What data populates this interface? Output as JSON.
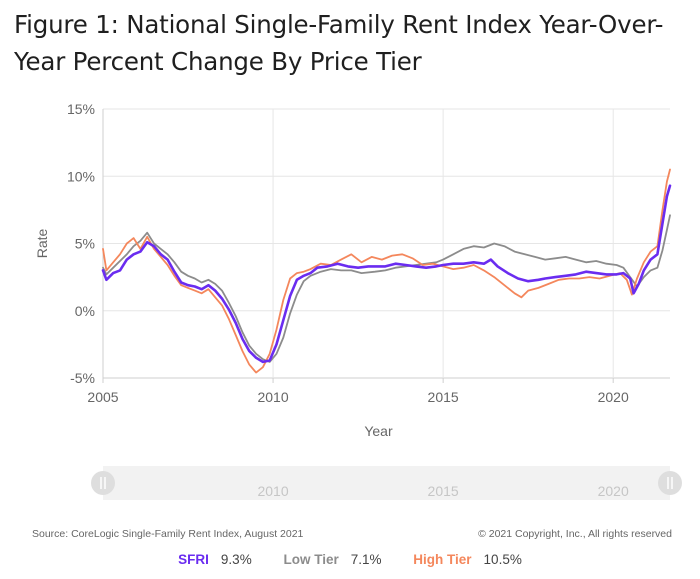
{
  "title": "Figure 1: National Single-Family Rent Index Year-Over-Year Percent Change By Price Tier",
  "source": "Source: CoreLogic Single-Family Rent Index, August 2021",
  "copyright": "© 2021 Copyright, Inc., All rights reserved",
  "colors": {
    "sfri": "#6a2cf0",
    "low": "#8c8c8c",
    "high": "#f4875c",
    "grid": "#e6e6e6",
    "axis": "#cfcfcf",
    "text": "#666666"
  },
  "legend": [
    {
      "name": "SFRI",
      "value": "9.3%",
      "color": "#6a2cf0"
    },
    {
      "name": "Low Tier",
      "value": "7.1%",
      "color": "#8c8c8c"
    },
    {
      "name": "High Tier",
      "value": "10.5%",
      "color": "#f4875c"
    }
  ],
  "navigator": {
    "tick_labels": [
      "2010",
      "2015",
      "2020"
    ]
  },
  "chart_data": {
    "type": "line",
    "title": "Figure 1: National Single-Family Rent Index Year-Over-Year Percent Change By Price Tier",
    "xlabel": "Year",
    "ylabel": "Rate",
    "xlim": [
      2005.0,
      2021.67
    ],
    "ylim": [
      -5,
      15
    ],
    "x_ticks": [
      2005,
      2010,
      2015,
      2020
    ],
    "y_ticks": [
      -5,
      0,
      5,
      10,
      15
    ],
    "y_tick_labels": [
      "-5%",
      "0%",
      "5%",
      "10%",
      "15%"
    ],
    "grid": "horizontal",
    "legend_position": "bottom",
    "series": [
      {
        "name": "SFRI",
        "points": [
          [
            2005.0,
            3.0
          ],
          [
            2005.1,
            2.3
          ],
          [
            2005.3,
            2.8
          ],
          [
            2005.5,
            3.0
          ],
          [
            2005.7,
            3.8
          ],
          [
            2005.9,
            4.2
          ],
          [
            2006.1,
            4.4
          ],
          [
            2006.3,
            5.1
          ],
          [
            2006.5,
            4.8
          ],
          [
            2006.7,
            4.2
          ],
          [
            2006.9,
            3.8
          ],
          [
            2007.1,
            2.9
          ],
          [
            2007.3,
            2.1
          ],
          [
            2007.5,
            1.9
          ],
          [
            2007.7,
            1.8
          ],
          [
            2007.9,
            1.6
          ],
          [
            2008.1,
            1.9
          ],
          [
            2008.3,
            1.5
          ],
          [
            2008.5,
            0.9
          ],
          [
            2008.7,
            0.1
          ],
          [
            2008.9,
            -0.9
          ],
          [
            2009.1,
            -2.1
          ],
          [
            2009.3,
            -3.0
          ],
          [
            2009.5,
            -3.5
          ],
          [
            2009.7,
            -3.8
          ],
          [
            2009.9,
            -3.7
          ],
          [
            2010.1,
            -2.5
          ],
          [
            2010.3,
            -0.7
          ],
          [
            2010.5,
            1.1
          ],
          [
            2010.7,
            2.3
          ],
          [
            2010.9,
            2.6
          ],
          [
            2011.1,
            2.8
          ],
          [
            2011.3,
            3.2
          ],
          [
            2011.6,
            3.3
          ],
          [
            2011.9,
            3.5
          ],
          [
            2012.2,
            3.3
          ],
          [
            2012.5,
            3.2
          ],
          [
            2012.8,
            3.3
          ],
          [
            2013.0,
            3.3
          ],
          [
            2013.3,
            3.3
          ],
          [
            2013.6,
            3.5
          ],
          [
            2013.9,
            3.4
          ],
          [
            2014.2,
            3.3
          ],
          [
            2014.5,
            3.2
          ],
          [
            2014.8,
            3.3
          ],
          [
            2015.0,
            3.4
          ],
          [
            2015.3,
            3.5
          ],
          [
            2015.6,
            3.5
          ],
          [
            2015.9,
            3.6
          ],
          [
            2016.2,
            3.5
          ],
          [
            2016.4,
            3.8
          ],
          [
            2016.6,
            3.3
          ],
          [
            2016.9,
            2.8
          ],
          [
            2017.2,
            2.4
          ],
          [
            2017.5,
            2.2
          ],
          [
            2017.8,
            2.3
          ],
          [
            2018.0,
            2.4
          ],
          [
            2018.3,
            2.5
          ],
          [
            2018.6,
            2.6
          ],
          [
            2018.9,
            2.7
          ],
          [
            2019.2,
            2.9
          ],
          [
            2019.5,
            2.8
          ],
          [
            2019.8,
            2.7
          ],
          [
            2020.1,
            2.7
          ],
          [
            2020.3,
            2.8
          ],
          [
            2020.5,
            2.4
          ],
          [
            2020.6,
            1.3
          ],
          [
            2020.75,
            2.0
          ],
          [
            2020.9,
            3.0
          ],
          [
            2021.1,
            3.8
          ],
          [
            2021.3,
            4.2
          ],
          [
            2021.45,
            6.5
          ],
          [
            2021.58,
            8.5
          ],
          [
            2021.67,
            9.3
          ]
        ]
      },
      {
        "name": "Low Tier",
        "points": [
          [
            2005.0,
            3.2
          ],
          [
            2005.1,
            2.7
          ],
          [
            2005.3,
            3.2
          ],
          [
            2005.5,
            3.7
          ],
          [
            2005.7,
            4.2
          ],
          [
            2005.9,
            4.8
          ],
          [
            2006.1,
            5.2
          ],
          [
            2006.3,
            5.8
          ],
          [
            2006.5,
            5.0
          ],
          [
            2006.7,
            4.6
          ],
          [
            2006.9,
            4.2
          ],
          [
            2007.1,
            3.6
          ],
          [
            2007.3,
            2.9
          ],
          [
            2007.5,
            2.6
          ],
          [
            2007.7,
            2.4
          ],
          [
            2007.9,
            2.1
          ],
          [
            2008.1,
            2.3
          ],
          [
            2008.3,
            2.0
          ],
          [
            2008.5,
            1.5
          ],
          [
            2008.7,
            0.6
          ],
          [
            2008.9,
            -0.4
          ],
          [
            2009.1,
            -1.6
          ],
          [
            2009.3,
            -2.6
          ],
          [
            2009.5,
            -3.2
          ],
          [
            2009.7,
            -3.6
          ],
          [
            2009.9,
            -3.8
          ],
          [
            2010.1,
            -3.2
          ],
          [
            2010.3,
            -2.0
          ],
          [
            2010.5,
            -0.2
          ],
          [
            2010.7,
            1.2
          ],
          [
            2010.9,
            2.2
          ],
          [
            2011.1,
            2.6
          ],
          [
            2011.4,
            2.9
          ],
          [
            2011.7,
            3.1
          ],
          [
            2012.0,
            3.0
          ],
          [
            2012.3,
            3.0
          ],
          [
            2012.6,
            2.8
          ],
          [
            2013.0,
            2.9
          ],
          [
            2013.3,
            3.0
          ],
          [
            2013.6,
            3.2
          ],
          [
            2013.9,
            3.3
          ],
          [
            2014.2,
            3.4
          ],
          [
            2014.5,
            3.5
          ],
          [
            2014.8,
            3.6
          ],
          [
            2015.0,
            3.8
          ],
          [
            2015.3,
            4.2
          ],
          [
            2015.6,
            4.6
          ],
          [
            2015.9,
            4.8
          ],
          [
            2016.2,
            4.7
          ],
          [
            2016.5,
            5.0
          ],
          [
            2016.8,
            4.8
          ],
          [
            2017.1,
            4.4
          ],
          [
            2017.4,
            4.2
          ],
          [
            2017.7,
            4.0
          ],
          [
            2018.0,
            3.8
          ],
          [
            2018.3,
            3.9
          ],
          [
            2018.6,
            4.0
          ],
          [
            2018.9,
            3.8
          ],
          [
            2019.2,
            3.6
          ],
          [
            2019.5,
            3.7
          ],
          [
            2019.8,
            3.5
          ],
          [
            2020.1,
            3.4
          ],
          [
            2020.3,
            3.2
          ],
          [
            2020.5,
            2.5
          ],
          [
            2020.7,
            1.8
          ],
          [
            2020.9,
            2.5
          ],
          [
            2021.1,
            3.0
          ],
          [
            2021.3,
            3.2
          ],
          [
            2021.45,
            4.5
          ],
          [
            2021.58,
            6.0
          ],
          [
            2021.67,
            7.1
          ]
        ]
      },
      {
        "name": "High Tier",
        "points": [
          [
            2005.0,
            4.6
          ],
          [
            2005.1,
            3.0
          ],
          [
            2005.3,
            3.6
          ],
          [
            2005.5,
            4.2
          ],
          [
            2005.7,
            5.0
          ],
          [
            2005.9,
            5.4
          ],
          [
            2006.1,
            4.6
          ],
          [
            2006.3,
            5.5
          ],
          [
            2006.5,
            4.6
          ],
          [
            2006.7,
            4.0
          ],
          [
            2006.9,
            3.4
          ],
          [
            2007.1,
            2.6
          ],
          [
            2007.3,
            1.9
          ],
          [
            2007.5,
            1.7
          ],
          [
            2007.7,
            1.5
          ],
          [
            2007.9,
            1.3
          ],
          [
            2008.1,
            1.6
          ],
          [
            2008.3,
            1.0
          ],
          [
            2008.5,
            0.4
          ],
          [
            2008.7,
            -0.6
          ],
          [
            2008.9,
            -1.8
          ],
          [
            2009.1,
            -3.0
          ],
          [
            2009.3,
            -4.0
          ],
          [
            2009.5,
            -4.6
          ],
          [
            2009.7,
            -4.2
          ],
          [
            2009.9,
            -3.2
          ],
          [
            2010.1,
            -1.4
          ],
          [
            2010.3,
            0.8
          ],
          [
            2010.5,
            2.4
          ],
          [
            2010.7,
            2.8
          ],
          [
            2010.9,
            2.9
          ],
          [
            2011.1,
            3.1
          ],
          [
            2011.4,
            3.5
          ],
          [
            2011.7,
            3.4
          ],
          [
            2012.0,
            3.8
          ],
          [
            2012.3,
            4.2
          ],
          [
            2012.6,
            3.6
          ],
          [
            2012.9,
            4.0
          ],
          [
            2013.2,
            3.8
          ],
          [
            2013.5,
            4.1
          ],
          [
            2013.8,
            4.2
          ],
          [
            2014.1,
            3.9
          ],
          [
            2014.4,
            3.4
          ],
          [
            2014.7,
            3.5
          ],
          [
            2015.0,
            3.3
          ],
          [
            2015.3,
            3.1
          ],
          [
            2015.6,
            3.2
          ],
          [
            2015.9,
            3.4
          ],
          [
            2016.2,
            3.0
          ],
          [
            2016.5,
            2.5
          ],
          [
            2016.8,
            1.9
          ],
          [
            2017.1,
            1.3
          ],
          [
            2017.3,
            1.0
          ],
          [
            2017.5,
            1.5
          ],
          [
            2017.8,
            1.7
          ],
          [
            2018.1,
            2.0
          ],
          [
            2018.4,
            2.3
          ],
          [
            2018.7,
            2.4
          ],
          [
            2019.0,
            2.4
          ],
          [
            2019.3,
            2.5
          ],
          [
            2019.6,
            2.4
          ],
          [
            2019.9,
            2.6
          ],
          [
            2020.2,
            2.8
          ],
          [
            2020.4,
            2.3
          ],
          [
            2020.55,
            1.2
          ],
          [
            2020.7,
            2.4
          ],
          [
            2020.9,
            3.6
          ],
          [
            2021.1,
            4.4
          ],
          [
            2021.3,
            4.8
          ],
          [
            2021.45,
            7.5
          ],
          [
            2021.58,
            9.6
          ],
          [
            2021.67,
            10.5
          ]
        ]
      }
    ]
  }
}
